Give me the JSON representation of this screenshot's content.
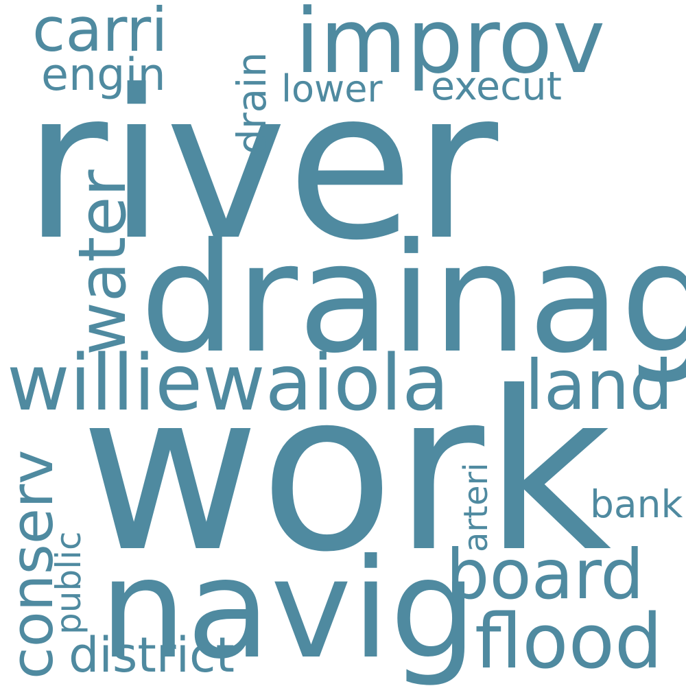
{
  "colors": {
    "background": "#ffffff",
    "word": "#4f8aa0"
  },
  "words": [
    {
      "text": "river",
      "orientation": "horizontal"
    },
    {
      "text": "work",
      "orientation": "horizontal"
    },
    {
      "text": "drainag",
      "orientation": "horizontal"
    },
    {
      "text": "navig",
      "orientation": "horizontal"
    },
    {
      "text": "williewaiola",
      "orientation": "horizontal"
    },
    {
      "text": "improv",
      "orientation": "horizontal"
    },
    {
      "text": "water",
      "orientation": "vertical"
    },
    {
      "text": "board",
      "orientation": "horizontal"
    },
    {
      "text": "flood",
      "orientation": "horizontal"
    },
    {
      "text": "land",
      "orientation": "horizontal"
    },
    {
      "text": "conserv",
      "orientation": "vertical"
    },
    {
      "text": "carri",
      "orientation": "horizontal"
    },
    {
      "text": "district",
      "orientation": "horizontal"
    },
    {
      "text": "engin",
      "orientation": "horizontal"
    },
    {
      "text": "drain",
      "orientation": "vertical"
    },
    {
      "text": "execut",
      "orientation": "horizontal"
    },
    {
      "text": "lower",
      "orientation": "horizontal"
    },
    {
      "text": "bank",
      "orientation": "horizontal"
    },
    {
      "text": "arteri",
      "orientation": "vertical"
    },
    {
      "text": "public",
      "orientation": "vertical"
    }
  ]
}
